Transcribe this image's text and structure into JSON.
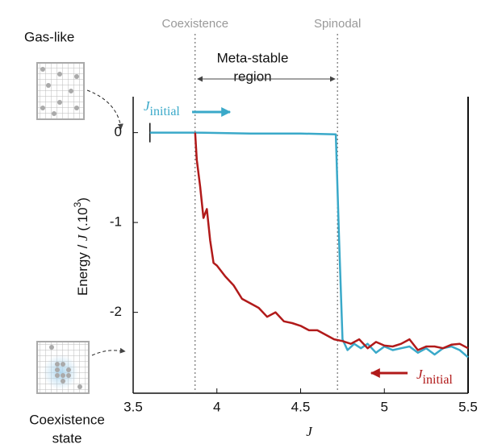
{
  "top_state": "Gas-like",
  "bottom_state": [
    "Coexistence",
    "state"
  ],
  "region_label": [
    "Meta-stable",
    "region"
  ],
  "chart_data": {
    "type": "line",
    "xlabel": "J",
    "ylabel": {
      "prefix": "Energy / ",
      "var": "J",
      "mid": " (.10",
      "sup": "3",
      "suffix": ")"
    },
    "xlim": [
      3.5,
      5.5
    ],
    "ylim": [
      -2.9,
      0.4
    ],
    "xticks": [
      3.5,
      4,
      4.5,
      5,
      5.5
    ],
    "yticks": [
      0,
      -1,
      -2
    ],
    "annotations": [
      {
        "text": "Coexistence",
        "x": 3.87
      },
      {
        "text": "Spinodal",
        "x": 4.72
      }
    ],
    "series": [
      {
        "color": "#3aa9c9",
        "label": {
          "symbol": "J",
          "subscript": "initial"
        },
        "x": [
          3.6,
          3.87,
          4.2,
          4.5,
          4.71,
          4.73,
          4.75,
          4.78,
          4.82,
          4.86,
          4.9,
          4.95,
          5.0,
          5.05,
          5.1,
          5.15,
          5.2,
          5.25,
          5.3,
          5.35,
          5.4,
          5.45,
          5.5
        ],
        "values": [
          0,
          0,
          -0.01,
          -0.01,
          -0.02,
          -1.2,
          -2.3,
          -2.42,
          -2.35,
          -2.4,
          -2.35,
          -2.45,
          -2.38,
          -2.42,
          -2.4,
          -2.38,
          -2.45,
          -2.4,
          -2.47,
          -2.4,
          -2.38,
          -2.42,
          -2.5
        ]
      },
      {
        "color": "#b11a1a",
        "label": {
          "symbol": "J",
          "subscript": "initial"
        },
        "x": [
          3.87,
          3.88,
          3.9,
          3.92,
          3.94,
          3.96,
          3.98,
          4.0,
          4.05,
          4.1,
          4.15,
          4.2,
          4.25,
          4.3,
          4.35,
          4.4,
          4.45,
          4.5,
          4.55,
          4.6,
          4.65,
          4.7,
          4.75,
          4.8,
          4.85,
          4.9,
          4.95,
          5.0,
          5.05,
          5.1,
          5.15,
          5.2,
          5.25,
          5.3,
          5.35,
          5.4,
          5.45,
          5.5
        ],
        "values": [
          0,
          -0.3,
          -0.6,
          -0.95,
          -0.85,
          -1.2,
          -1.45,
          -1.48,
          -1.6,
          -1.7,
          -1.85,
          -1.9,
          -1.95,
          -2.05,
          -2.0,
          -2.1,
          -2.12,
          -2.15,
          -2.2,
          -2.2,
          -2.25,
          -2.3,
          -2.32,
          -2.35,
          -2.3,
          -2.4,
          -2.33,
          -2.37,
          -2.38,
          -2.35,
          -2.3,
          -2.42,
          -2.38,
          -2.38,
          -2.4,
          -2.36,
          -2.35,
          -2.4
        ]
      }
    ]
  }
}
